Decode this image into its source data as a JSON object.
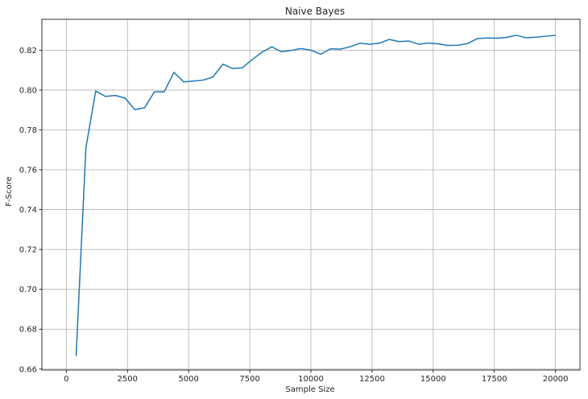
{
  "chart_data": {
    "type": "line",
    "title": "Naive Bayes",
    "xlabel": "Sample Size",
    "ylabel": "F-Score",
    "xlim": [
      -1000,
      21000
    ],
    "ylim": [
      0.6595,
      0.8355
    ],
    "xticks": [
      0,
      2500,
      5000,
      7500,
      10000,
      12500,
      15000,
      17500,
      20000
    ],
    "yticks": [
      0.66,
      0.68,
      0.7,
      0.72,
      0.74,
      0.76,
      0.78,
      0.8,
      0.82
    ],
    "xtick_labels": [
      "0",
      "2500",
      "5000",
      "7500",
      "10000",
      "12500",
      "15000",
      "17500",
      "20000"
    ],
    "ytick_labels": [
      "0.66",
      "0.68",
      "0.70",
      "0.72",
      "0.74",
      "0.76",
      "0.78",
      "0.80",
      "0.82"
    ],
    "grid": true,
    "line_color": "#1f77b4",
    "series": [
      {
        "x": [
          400,
          800,
          1200,
          1600,
          2000,
          2400,
          2800,
          3200,
          3600,
          4000,
          4400,
          4800,
          5200,
          5600,
          6000,
          6400,
          6800,
          7200,
          7600,
          8000,
          8400,
          8800,
          9200,
          9600,
          10000,
          10400,
          10800,
          11200,
          11600,
          12000,
          12400,
          12800,
          13200,
          13600,
          14000,
          14400,
          14800,
          15200,
          15600,
          16000,
          16400,
          16800,
          17200,
          17600,
          18000,
          18400,
          18800,
          19200,
          19600,
          20000
        ],
        "y": [
          0.6665,
          0.771,
          0.7995,
          0.7968,
          0.7973,
          0.796,
          0.7902,
          0.7911,
          0.7991,
          0.7991,
          0.8089,
          0.8041,
          0.8045,
          0.805,
          0.8066,
          0.813,
          0.8108,
          0.8112,
          0.8153,
          0.819,
          0.8217,
          0.8192,
          0.8199,
          0.8208,
          0.82,
          0.818,
          0.8207,
          0.8205,
          0.8217,
          0.8235,
          0.823,
          0.8235,
          0.8254,
          0.8243,
          0.8246,
          0.823,
          0.8236,
          0.8232,
          0.8224,
          0.8225,
          0.8233,
          0.8258,
          0.8261,
          0.826,
          0.8264,
          0.8275,
          0.8262,
          0.8265,
          0.827,
          0.8275
        ]
      }
    ]
  }
}
